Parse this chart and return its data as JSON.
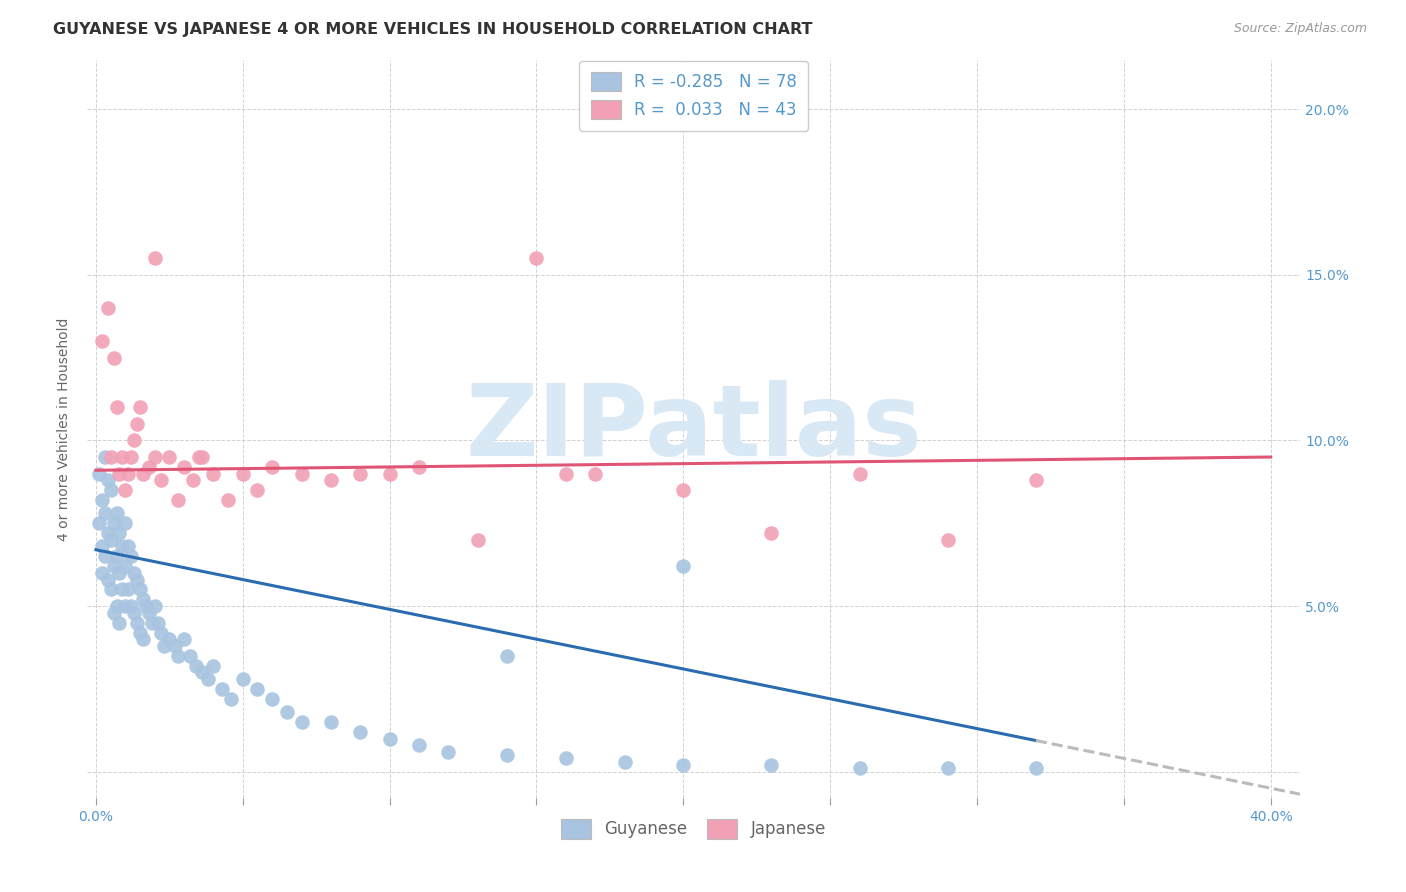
{
  "title": "GUYANESE VS JAPANESE 4 OR MORE VEHICLES IN HOUSEHOLD CORRELATION CHART",
  "source": "Source: ZipAtlas.com",
  "ylabel": "4 or more Vehicles in Household",
  "xlim": [
    -0.003,
    0.41
  ],
  "ylim": [
    -0.008,
    0.215
  ],
  "xtick_positions": [
    0.0,
    0.05,
    0.1,
    0.15,
    0.2,
    0.25,
    0.3,
    0.35,
    0.4
  ],
  "xticklabels": [
    "0.0%",
    "",
    "",
    "",
    "",
    "",
    "",
    "",
    "40.0%"
  ],
  "ytick_positions": [
    0.0,
    0.05,
    0.1,
    0.15,
    0.2
  ],
  "yticklabels_right": [
    "",
    "5.0%",
    "10.0%",
    "15.0%",
    "20.0%"
  ],
  "guyanese_color": "#A8C4E0",
  "japanese_color": "#F2A0B5",
  "guyanese_line_color": "#2B6CB0",
  "japanese_line_color": "#E05575",
  "regression_dash_color": "#BBBBBB",
  "background_color": "#FFFFFF",
  "watermark": "ZIPatlas",
  "watermark_color": "#D8E8F5",
  "legend_guyanese_label": "R = -0.285   N = 78",
  "legend_japanese_label": "R =  0.033   N = 43",
  "legend_title_guyanese": "Guyanese",
  "legend_title_japanese": "Japanese",
  "tick_color": "#5599CC",
  "title_fontsize": 11.5,
  "axis_label_fontsize": 10,
  "tick_fontsize": 10,
  "source_fontsize": 9,
  "legend_fontsize": 12,
  "guyanese_x": [
    0.001,
    0.001,
    0.002,
    0.002,
    0.002,
    0.003,
    0.003,
    0.003,
    0.004,
    0.004,
    0.004,
    0.005,
    0.005,
    0.005,
    0.006,
    0.006,
    0.006,
    0.007,
    0.007,
    0.007,
    0.008,
    0.008,
    0.008,
    0.009,
    0.009,
    0.01,
    0.01,
    0.01,
    0.011,
    0.011,
    0.012,
    0.012,
    0.013,
    0.013,
    0.014,
    0.014,
    0.015,
    0.015,
    0.016,
    0.016,
    0.017,
    0.018,
    0.019,
    0.02,
    0.021,
    0.022,
    0.023,
    0.025,
    0.027,
    0.028,
    0.03,
    0.032,
    0.034,
    0.036,
    0.038,
    0.04,
    0.043,
    0.046,
    0.05,
    0.055,
    0.06,
    0.065,
    0.07,
    0.08,
    0.09,
    0.1,
    0.11,
    0.12,
    0.14,
    0.16,
    0.18,
    0.2,
    0.23,
    0.26,
    0.29,
    0.32,
    0.2,
    0.14
  ],
  "guyanese_y": [
    0.09,
    0.075,
    0.082,
    0.068,
    0.06,
    0.095,
    0.078,
    0.065,
    0.088,
    0.072,
    0.058,
    0.085,
    0.07,
    0.055,
    0.075,
    0.062,
    0.048,
    0.078,
    0.065,
    0.05,
    0.072,
    0.06,
    0.045,
    0.068,
    0.055,
    0.075,
    0.062,
    0.05,
    0.068,
    0.055,
    0.065,
    0.05,
    0.06,
    0.048,
    0.058,
    0.045,
    0.055,
    0.042,
    0.052,
    0.04,
    0.05,
    0.048,
    0.045,
    0.05,
    0.045,
    0.042,
    0.038,
    0.04,
    0.038,
    0.035,
    0.04,
    0.035,
    0.032,
    0.03,
    0.028,
    0.032,
    0.025,
    0.022,
    0.028,
    0.025,
    0.022,
    0.018,
    0.015,
    0.015,
    0.012,
    0.01,
    0.008,
    0.006,
    0.005,
    0.004,
    0.003,
    0.002,
    0.002,
    0.001,
    0.001,
    0.001,
    0.062,
    0.035
  ],
  "japanese_x": [
    0.002,
    0.004,
    0.005,
    0.006,
    0.007,
    0.008,
    0.009,
    0.01,
    0.011,
    0.012,
    0.013,
    0.014,
    0.015,
    0.016,
    0.018,
    0.02,
    0.022,
    0.025,
    0.028,
    0.03,
    0.033,
    0.036,
    0.04,
    0.045,
    0.05,
    0.055,
    0.06,
    0.07,
    0.08,
    0.09,
    0.1,
    0.11,
    0.13,
    0.15,
    0.17,
    0.2,
    0.23,
    0.26,
    0.29,
    0.32,
    0.02,
    0.035,
    0.16
  ],
  "japanese_y": [
    0.13,
    0.14,
    0.095,
    0.125,
    0.11,
    0.09,
    0.095,
    0.085,
    0.09,
    0.095,
    0.1,
    0.105,
    0.11,
    0.09,
    0.092,
    0.095,
    0.088,
    0.095,
    0.082,
    0.092,
    0.088,
    0.095,
    0.09,
    0.082,
    0.09,
    0.085,
    0.092,
    0.09,
    0.088,
    0.09,
    0.09,
    0.092,
    0.07,
    0.155,
    0.09,
    0.085,
    0.072,
    0.09,
    0.07,
    0.088,
    0.155,
    0.095,
    0.09
  ],
  "guyanese_line_x0": 0.0,
  "guyanese_line_y0": 0.067,
  "guyanese_line_x1": 0.4,
  "guyanese_line_y1": -0.005,
  "japanese_line_x0": 0.0,
  "japanese_line_y0": 0.091,
  "japanese_line_x1": 0.4,
  "japanese_line_y1": 0.095
}
